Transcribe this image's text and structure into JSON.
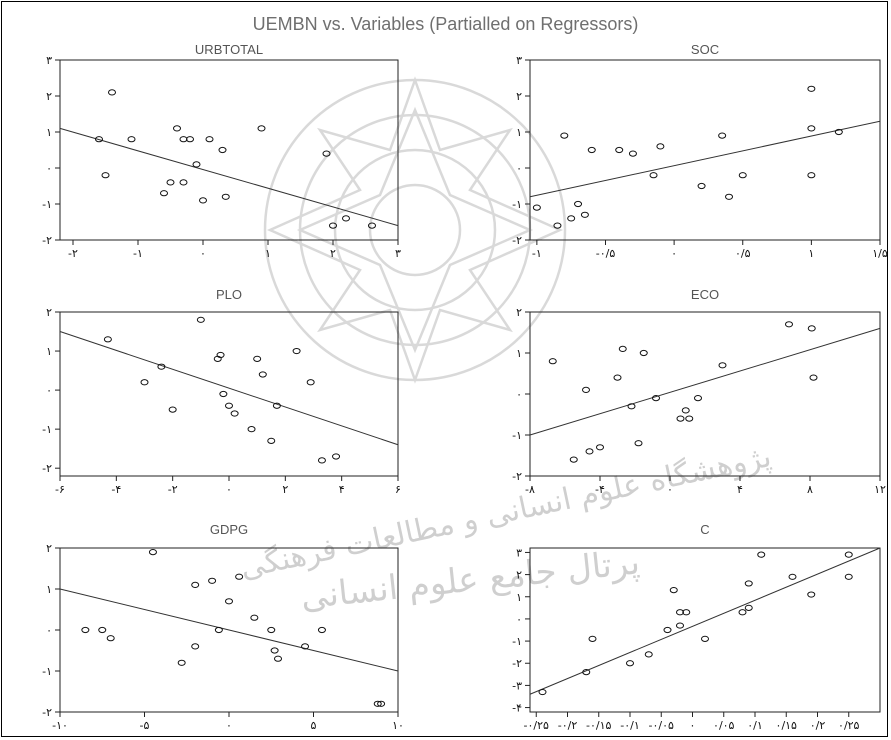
{
  "title": "UEMBN vs. Variables (Partialled on Regressors)",
  "watermark": {
    "line1": "پژوهشگاه علوم انسانی و مطالعات فرهنگی",
    "line2": "پرتال جامع علوم انسانی"
  },
  "chart_data": [
    {
      "type": "scatter",
      "title": "URBTOTAL",
      "xlim": [
        -2.2,
        3
      ],
      "ylim": [
        -2,
        3
      ],
      "xticks": [
        -2,
        -1,
        0,
        1,
        2,
        3
      ],
      "xtick_labels": [
        "-۲",
        "-۱",
        "۰",
        "۱",
        "۲",
        "۳"
      ],
      "yticks": [
        -2,
        -1,
        0,
        1,
        2,
        3
      ],
      "ytick_labels": [
        "-۲",
        "-۱",
        "۰",
        "۱",
        "۲",
        "۳"
      ],
      "points": [
        [
          -1.6,
          0.8
        ],
        [
          -1.4,
          2.1
        ],
        [
          -1.5,
          -0.2
        ],
        [
          -1.1,
          0.8
        ],
        [
          -0.6,
          -0.7
        ],
        [
          -0.5,
          -0.4
        ],
        [
          -0.4,
          1.1
        ],
        [
          -0.3,
          -0.4
        ],
        [
          -0.3,
          0.8
        ],
        [
          -0.2,
          0.8
        ],
        [
          -0.1,
          0.1
        ],
        [
          0.0,
          -0.9
        ],
        [
          0.1,
          0.8
        ],
        [
          0.3,
          0.5
        ],
        [
          0.35,
          -0.8
        ],
        [
          0.9,
          1.1
        ],
        [
          1.9,
          0.4
        ],
        [
          2.0,
          -1.6
        ],
        [
          2.2,
          -1.4
        ],
        [
          2.6,
          -1.6
        ]
      ],
      "fit_line": {
        "x": [
          -2.2,
          3.0
        ],
        "y": [
          1.1,
          -1.6
        ]
      }
    },
    {
      "type": "scatter",
      "title": "SOC",
      "xlim": [
        -1.05,
        1.5
      ],
      "ylim": [
        -2,
        3
      ],
      "xticks": [
        -1,
        -0.5,
        0,
        0.5,
        1,
        1.5
      ],
      "xtick_labels": [
        "-۱",
        "-۰/۵",
        "۰",
        "۰/۵",
        "۱",
        "۱/۵"
      ],
      "yticks": [
        -2,
        -1,
        0,
        1,
        2,
        3
      ],
      "ytick_labels": [
        "-۲",
        "-۱",
        "۰",
        "۱",
        "۲",
        "۳"
      ],
      "points": [
        [
          -1.0,
          -1.1
        ],
        [
          -0.85,
          -1.6
        ],
        [
          -0.8,
          0.9
        ],
        [
          -0.75,
          -1.4
        ],
        [
          -0.7,
          -1.0
        ],
        [
          -0.65,
          -1.3
        ],
        [
          -0.6,
          0.5
        ],
        [
          -0.4,
          0.5
        ],
        [
          -0.3,
          0.4
        ],
        [
          -0.1,
          0.6
        ],
        [
          -0.15,
          -0.2
        ],
        [
          0.2,
          -0.5
        ],
        [
          0.35,
          0.9
        ],
        [
          0.4,
          -0.8
        ],
        [
          0.5,
          -0.2
        ],
        [
          1.0,
          2.2
        ],
        [
          1.0,
          1.1
        ],
        [
          1.0,
          -0.2
        ],
        [
          1.2,
          1.0
        ]
      ],
      "fit_line": {
        "x": [
          -1.05,
          1.5
        ],
        "y": [
          -0.8,
          1.3
        ]
      }
    },
    {
      "type": "scatter",
      "title": "PLO",
      "xlim": [
        -6,
        6
      ],
      "ylim": [
        -2.2,
        2
      ],
      "xticks": [
        -6,
        -4,
        -2,
        0,
        2,
        4,
        6
      ],
      "xtick_labels": [
        "-۶",
        "-۴",
        "-۲",
        "۰",
        "۲",
        "۴",
        "۶"
      ],
      "yticks": [
        -2,
        -1,
        0,
        1,
        2
      ],
      "ytick_labels": [
        "-۲",
        "-۱",
        "۰",
        "۱",
        "۲"
      ],
      "points": [
        [
          -4.3,
          1.3
        ],
        [
          -3.0,
          0.2
        ],
        [
          -2.4,
          0.6
        ],
        [
          -2.0,
          -0.5
        ],
        [
          -1.0,
          1.8
        ],
        [
          -0.4,
          0.8
        ],
        [
          -0.3,
          0.9
        ],
        [
          -0.2,
          -0.1
        ],
        [
          0.0,
          -0.4
        ],
        [
          0.2,
          -0.6
        ],
        [
          0.8,
          -1.0
        ],
        [
          1.0,
          0.8
        ],
        [
          1.2,
          0.4
        ],
        [
          1.5,
          -1.3
        ],
        [
          1.7,
          -0.4
        ],
        [
          2.4,
          1.0
        ],
        [
          2.9,
          0.2
        ],
        [
          3.3,
          -1.8
        ],
        [
          3.8,
          -1.7
        ]
      ],
      "fit_line": {
        "x": [
          -6,
          6
        ],
        "y": [
          1.5,
          -1.4
        ]
      }
    },
    {
      "type": "scatter",
      "title": "ECO",
      "xlim": [
        -8,
        12
      ],
      "ylim": [
        -2,
        2
      ],
      "xticks": [
        -8,
        -4,
        0,
        4,
        8,
        12
      ],
      "xtick_labels": [
        "-۸",
        "-۴",
        "۰",
        "۴",
        "۸",
        "۱۲"
      ],
      "yticks": [
        -2,
        -1,
        0,
        1,
        2
      ],
      "ytick_labels": [
        "-۲",
        "-۱",
        "۰",
        "۱",
        "۲"
      ],
      "points": [
        [
          -6.7,
          0.8
        ],
        [
          -5.5,
          -1.6
        ],
        [
          -4.8,
          0.1
        ],
        [
          -4.6,
          -1.4
        ],
        [
          -4.0,
          -1.3
        ],
        [
          -3.0,
          0.4
        ],
        [
          -2.7,
          1.1
        ],
        [
          -2.2,
          -0.3
        ],
        [
          -1.5,
          1.0
        ],
        [
          -1.8,
          -1.2
        ],
        [
          -0.8,
          -0.1
        ],
        [
          0.6,
          -0.6
        ],
        [
          0.9,
          -0.4
        ],
        [
          1.1,
          -0.6
        ],
        [
          1.6,
          -0.1
        ],
        [
          3.0,
          0.7
        ],
        [
          6.8,
          1.7
        ],
        [
          8.1,
          1.6
        ],
        [
          8.2,
          0.4
        ]
      ],
      "fit_line": {
        "x": [
          -8,
          12
        ],
        "y": [
          -1.0,
          1.6
        ]
      }
    },
    {
      "type": "scatter",
      "title": "GDPG",
      "xlim": [
        -10,
        10
      ],
      "ylim": [
        -2,
        2
      ],
      "xticks": [
        -10,
        -5,
        0,
        5,
        10
      ],
      "xtick_labels": [
        "-۱۰",
        "-۵",
        "۰",
        "۵",
        "۱۰"
      ],
      "yticks": [
        -2,
        -1,
        0,
        1,
        2
      ],
      "ytick_labels": [
        "-۲",
        "-۱",
        "۰",
        "۱",
        "۲"
      ],
      "points": [
        [
          -8.5,
          0.0
        ],
        [
          -7.5,
          0.0
        ],
        [
          -7.0,
          -0.2
        ],
        [
          -4.5,
          1.9
        ],
        [
          -2.8,
          -0.8
        ],
        [
          -2.0,
          1.1
        ],
        [
          -2.0,
          -0.4
        ],
        [
          -1.0,
          1.2
        ],
        [
          -0.6,
          0.0
        ],
        [
          0.0,
          0.7
        ],
        [
          0.6,
          1.3
        ],
        [
          1.5,
          0.3
        ],
        [
          2.5,
          0.0
        ],
        [
          2.7,
          -0.5
        ],
        [
          2.9,
          -0.7
        ],
        [
          4.5,
          -0.4
        ],
        [
          5.5,
          0.0
        ],
        [
          8.8,
          -1.8
        ],
        [
          9.0,
          -1.8
        ]
      ],
      "fit_line": {
        "x": [
          -10,
          10
        ],
        "y": [
          1.0,
          -1.0
        ]
      }
    },
    {
      "type": "scatter",
      "title": "C",
      "xlim": [
        -0.26,
        0.3
      ],
      "ylim": [
        -4.2,
        3.2
      ],
      "xticks": [
        -0.25,
        -0.2,
        -0.15,
        -0.1,
        -0.05,
        0,
        0.05,
        0.1,
        0.15,
        0.2,
        0.25
      ],
      "xtick_labels": [
        "-۰/۲۵",
        "-۰/۲",
        "-۰/۱۵",
        "-۰/۱",
        "-۰/۰۵",
        "۰",
        "۰/۰۵",
        "۰/۱",
        "۰/۱۵",
        "۰/۲",
        "۰/۲۵"
      ],
      "yticks": [
        -4,
        -3,
        -2,
        -1,
        0,
        1,
        2,
        3
      ],
      "ytick_labels": [
        "-۴",
        "-۳",
        "-۲",
        "-۱",
        "۰",
        "۱",
        "۲",
        "۳"
      ],
      "points": [
        [
          -0.24,
          -3.3
        ],
        [
          -0.17,
          -2.4
        ],
        [
          -0.16,
          -0.9
        ],
        [
          -0.1,
          -2.0
        ],
        [
          -0.07,
          -1.6
        ],
        [
          -0.04,
          -0.5
        ],
        [
          -0.03,
          1.3
        ],
        [
          -0.02,
          0.3
        ],
        [
          -0.02,
          -0.3
        ],
        [
          -0.01,
          0.3
        ],
        [
          0.02,
          -0.9
        ],
        [
          0.08,
          0.3
        ],
        [
          0.09,
          1.6
        ],
        [
          0.09,
          0.5
        ],
        [
          0.11,
          2.9
        ],
        [
          0.16,
          1.9
        ],
        [
          0.19,
          1.1
        ],
        [
          0.25,
          2.9
        ],
        [
          0.25,
          1.9
        ]
      ],
      "fit_line": {
        "x": [
          -0.26,
          0.3
        ],
        "y": [
          -3.4,
          3.2
        ]
      }
    }
  ]
}
